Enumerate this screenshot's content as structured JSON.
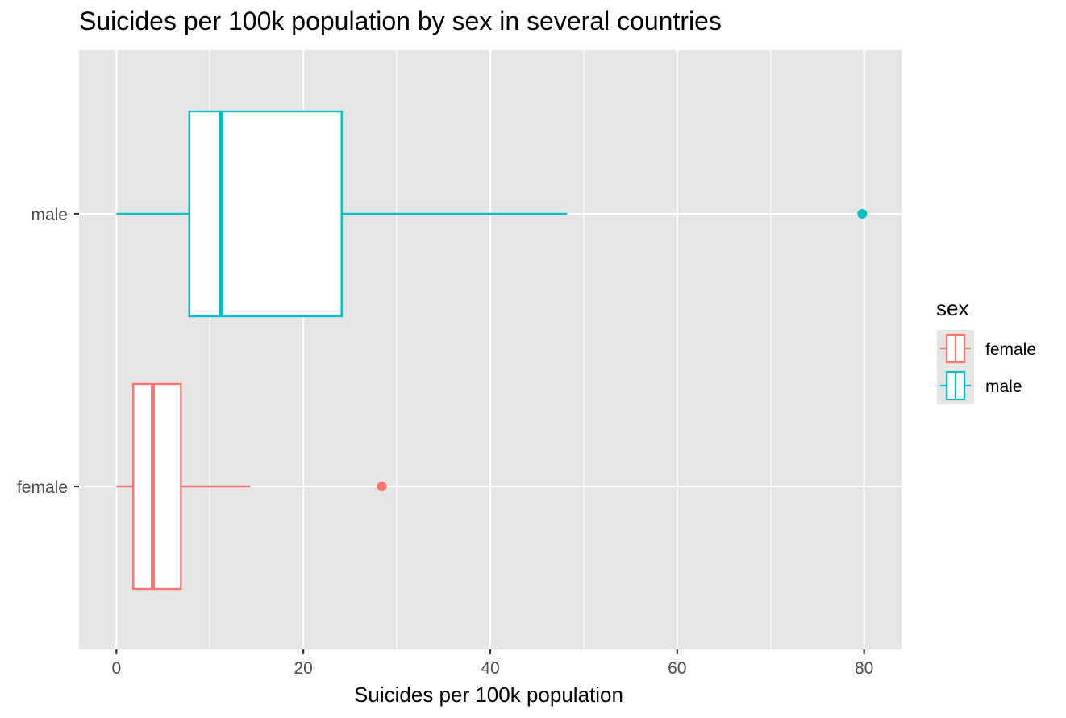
{
  "chart_data": {
    "type": "boxplot",
    "title": "Suicides per 100k population by sex in several countries",
    "xlabel": "Suicides per 100k population",
    "ylabel": "",
    "xlim": [
      -4,
      84
    ],
    "x_ticks": [
      0,
      20,
      40,
      60,
      80
    ],
    "x_tick_labels": [
      "0",
      "20",
      "40",
      "60",
      "80"
    ],
    "orientation": "horizontal",
    "grid": true,
    "legend": {
      "title": "sex",
      "position": "right",
      "entries": [
        "female",
        "male"
      ]
    },
    "categories": [
      "female",
      "male"
    ],
    "series": [
      {
        "name": "female",
        "color": "#F8766D",
        "whisker_low": 0,
        "q1": 1.8,
        "median": 3.9,
        "q3": 6.9,
        "whisker_high": 14.3,
        "outliers": [
          28.4
        ]
      },
      {
        "name": "male",
        "color": "#00BFC4",
        "whisker_low": 0,
        "q1": 7.8,
        "median": 11.2,
        "q3": 24.1,
        "whisker_high": 48.2,
        "outliers": [
          79.8
        ]
      }
    ],
    "background_color": "#E5E5E5",
    "grid_color": "#FFFFFF"
  }
}
